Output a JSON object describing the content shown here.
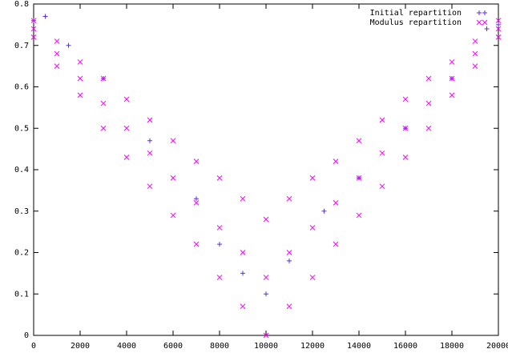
{
  "chart_data": {
    "type": "scatter",
    "xlim": [
      0,
      20000
    ],
    "xticks": [
      0,
      2000,
      4000,
      6000,
      8000,
      10000,
      12000,
      14000,
      16000,
      18000,
      20000
    ],
    "ylim": [
      0,
      0.8
    ],
    "yticks": [
      0,
      0.1,
      0.2,
      0.3,
      0.4,
      0.5,
      0.6,
      0.7,
      0.8
    ],
    "legend": "top-right",
    "series": [
      {
        "name": "Initial repartition",
        "color": "#5a2ee6",
        "marker": "+",
        "x": [
          0,
          500,
          1500,
          3000,
          5000,
          7000,
          8000,
          9000,
          10000,
          11000,
          12500,
          14000,
          16000,
          18000,
          19500,
          20000
        ],
        "values": [
          0.76,
          0.77,
          0.7,
          0.62,
          0.47,
          0.33,
          0.22,
          0.15,
          0.1,
          0.18,
          0.3,
          0.38,
          0.5,
          0.62,
          0.74,
          0.75
        ]
      },
      {
        "name": "Modulus repartition",
        "color": "#ff00ff",
        "marker": "x",
        "x": [
          0,
          0,
          0,
          1000,
          1000,
          1000,
          2000,
          2000,
          2000,
          3000,
          3000,
          3000,
          4000,
          4000,
          4000,
          5000,
          5000,
          5000,
          6000,
          6000,
          6000,
          7000,
          7000,
          7000,
          8000,
          8000,
          8000,
          9000,
          9000,
          9000,
          10000,
          10000,
          10000,
          11000,
          11000,
          11000,
          12000,
          12000,
          12000,
          13000,
          13000,
          13000,
          14000,
          14000,
          14000,
          15000,
          15000,
          15000,
          16000,
          16000,
          16000,
          17000,
          17000,
          17000,
          18000,
          18000,
          18000,
          19000,
          19000,
          19000,
          20000,
          20000,
          20000
        ],
        "values": [
          0.72,
          0.74,
          0.76,
          0.65,
          0.68,
          0.71,
          0.58,
          0.62,
          0.66,
          0.5,
          0.56,
          0.62,
          0.43,
          0.5,
          0.57,
          0.36,
          0.44,
          0.52,
          0.29,
          0.38,
          0.47,
          0.22,
          0.32,
          0.42,
          0.14,
          0.26,
          0.38,
          0.07,
          0.2,
          0.33,
          0,
          0.14,
          0.28,
          0.07,
          0.2,
          0.33,
          0.14,
          0.26,
          0.38,
          0.22,
          0.32,
          0.42,
          0.29,
          0.38,
          0.47,
          0.36,
          0.44,
          0.52,
          0.43,
          0.5,
          0.57,
          0.5,
          0.56,
          0.62,
          0.58,
          0.62,
          0.66,
          0.65,
          0.68,
          0.71,
          0.72,
          0.74,
          0.76
        ]
      }
    ]
  }
}
